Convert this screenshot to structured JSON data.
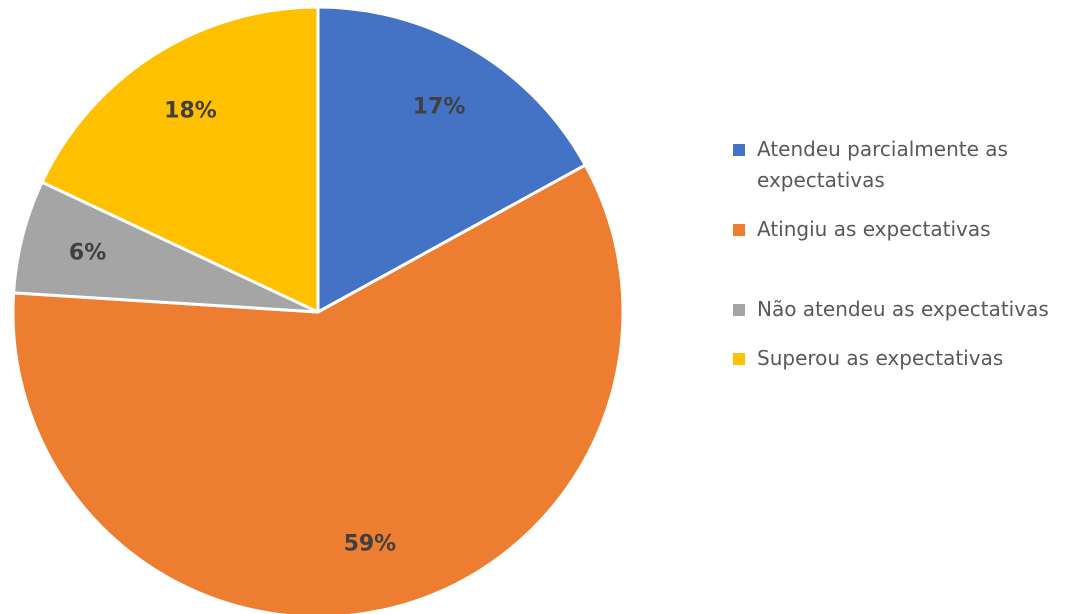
{
  "chart_data": {
    "type": "pie",
    "start_angle_deg": 0,
    "direction": "clockwise",
    "legend_position": "right",
    "slices": [
      {
        "label": "Atendeu parcialmente as expectativas",
        "value": 17,
        "value_label": "17%",
        "color": "#4472C4"
      },
      {
        "label": "Atingiu as expectativas",
        "value": 59,
        "value_label": "59%",
        "color": "#ED7D31"
      },
      {
        "label": "Não atendeu as expectativas",
        "value": 6,
        "value_label": "6%",
        "color": "#A5A5A5"
      },
      {
        "label": "Superou as expectativas",
        "value": 18,
        "value_label": "18%",
        "color": "#FFC000"
      }
    ]
  }
}
